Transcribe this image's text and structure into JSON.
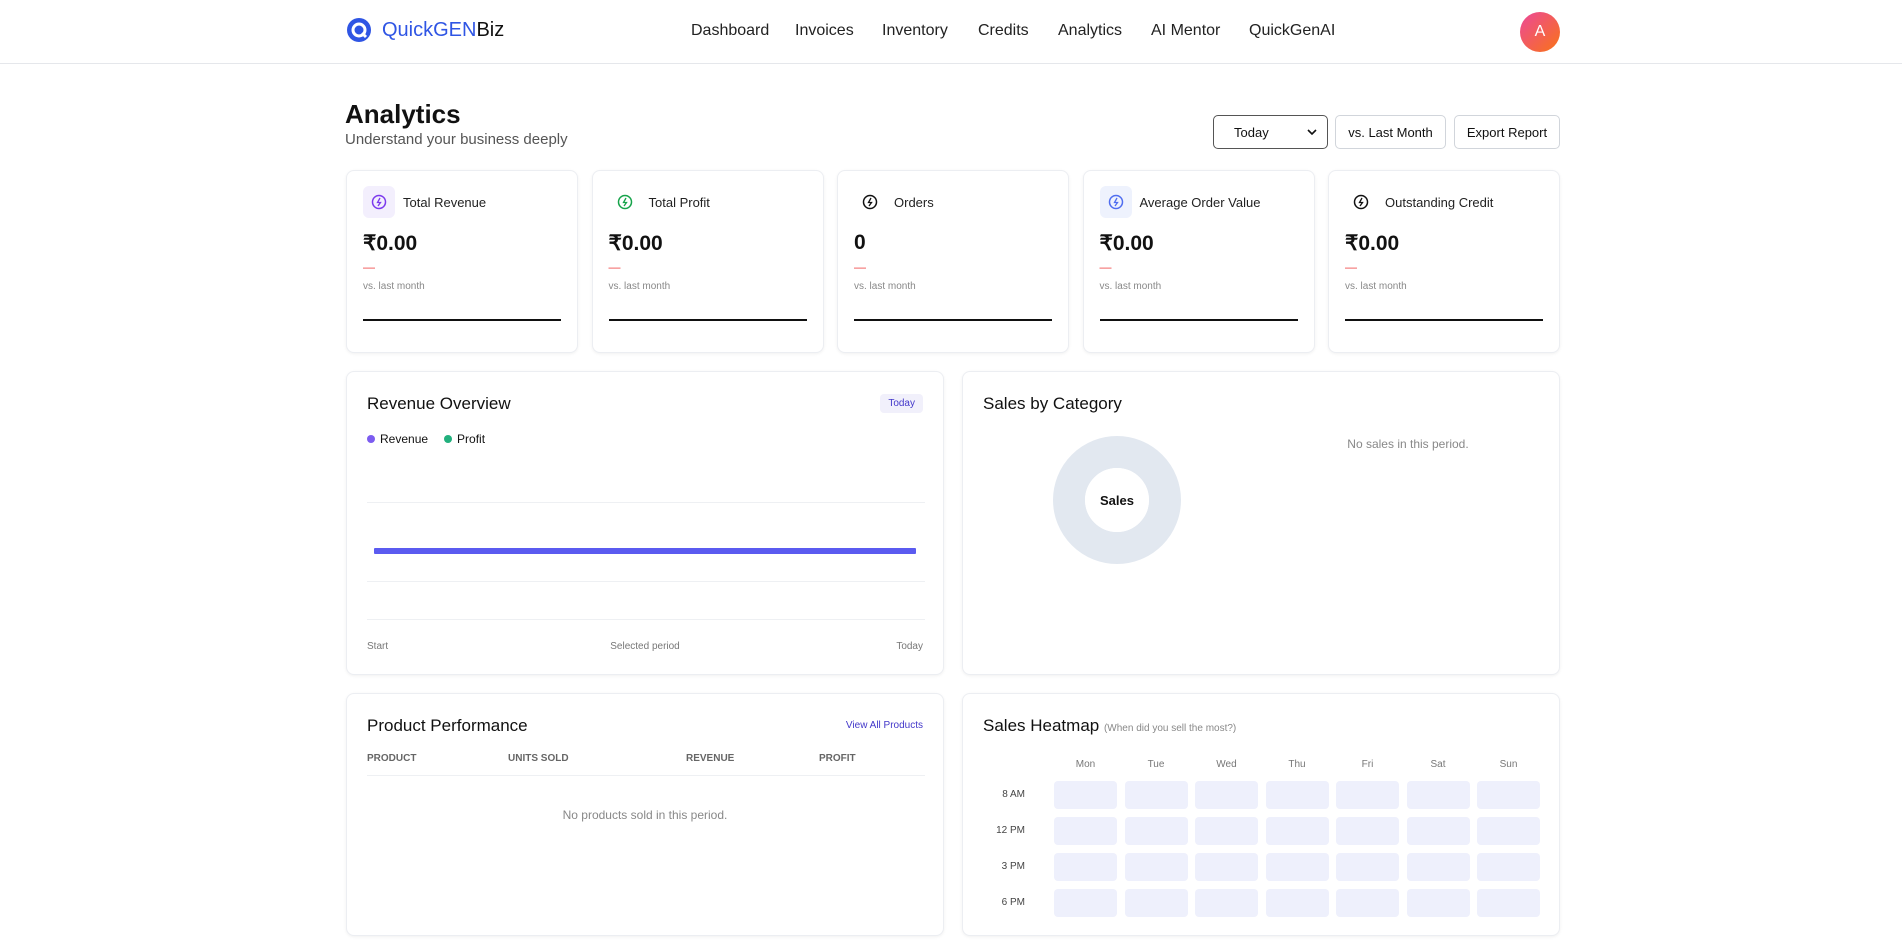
{
  "header": {
    "logo": {
      "prefix": "QuickGEN",
      "suffix": "Biz"
    },
    "nav": [
      "Dashboard",
      "Invoices",
      "Inventory",
      "Credits",
      "Analytics",
      "AI Mentor",
      "QuickGenAI"
    ],
    "avatar": "A"
  },
  "page": {
    "title": "Analytics",
    "subtitle": "Understand your business deeply",
    "period_select": "Today",
    "buttons": [
      "vs. Last Month",
      "Export Report"
    ]
  },
  "kpis": [
    {
      "label": "Total Revenue",
      "value": "₹0.00",
      "change": "—",
      "note": "vs. last month"
    },
    {
      "label": "Total Profit",
      "value": "₹0.00",
      "change": "—",
      "note": "vs. last month"
    },
    {
      "label": "Orders",
      "value": "0",
      "change": "—",
      "note": "vs. last month"
    },
    {
      "label": "Average Order Value",
      "value": "₹0.00",
      "change": "—",
      "note": "vs. last month"
    },
    {
      "label": "Outstanding Credit",
      "value": "₹0.00",
      "change": "—",
      "note": "vs. last month"
    }
  ],
  "revenue_overview": {
    "title": "Revenue Overview",
    "badge": "Today",
    "legend": [
      "Revenue",
      "Profit"
    ],
    "x_labels": [
      "Start",
      "Selected period",
      "Today"
    ]
  },
  "sales_by_category": {
    "title": "Sales by Category",
    "center_label": "Sales",
    "empty": "No sales in this period."
  },
  "product_performance": {
    "title": "Product Performance",
    "link": "View All Products",
    "columns": [
      "PRODUCT",
      "UNITS SOLD",
      "REVENUE",
      "PROFIT"
    ],
    "empty": "No products sold in this period."
  },
  "sales_heatmap": {
    "title": "Sales Heatmap",
    "hint": "(When did you sell the most?)",
    "days": [
      "Mon",
      "Tue",
      "Wed",
      "Thu",
      "Fri",
      "Sat",
      "Sun"
    ],
    "times": [
      "8 AM",
      "12 PM",
      "3 PM",
      "6 PM"
    ]
  }
}
